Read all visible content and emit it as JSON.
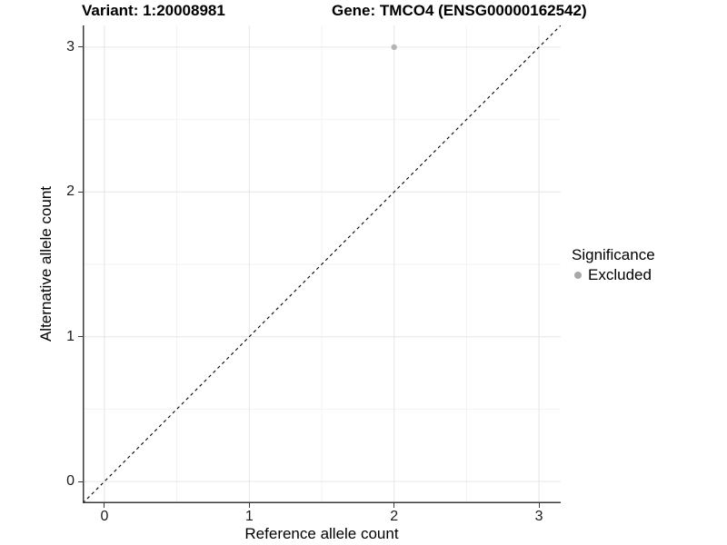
{
  "chart_data": {
    "type": "scatter",
    "title_variant": "Variant: 1:20008981",
    "title_gene": "Gene: TMCO4 (ENSG00000162542)",
    "xlabel": "Reference allele count",
    "ylabel": "Alternative allele count",
    "xlim": [
      -0.15,
      3.15
    ],
    "ylim": [
      -0.15,
      3.15
    ],
    "x_ticks": [
      0,
      1,
      2,
      3
    ],
    "y_ticks": [
      0,
      1,
      2,
      3
    ],
    "grid": {
      "visible": true,
      "major": [
        0,
        1,
        2,
        3
      ],
      "minor": [
        0.5,
        1.5,
        2.5
      ],
      "major_color": "#e6e6e6",
      "minor_color": "#f2f2f2"
    },
    "axis_color": "#3a3a3a",
    "text_color": "#1a1a1a",
    "background": "#ffffff",
    "points": [
      {
        "x": 2,
        "y": 3,
        "series": "Excluded",
        "color": "#b5b5b5"
      }
    ],
    "reference_line": {
      "kind": "identity",
      "x1": -0.15,
      "y1": -0.15,
      "x2": 3.15,
      "y2": 3.15,
      "style": "dashed",
      "color": "#000000"
    },
    "legend": {
      "title": "Significance",
      "position": "right",
      "entries": [
        {
          "label": "Excluded",
          "color": "#a8a8a8"
        }
      ]
    }
  }
}
